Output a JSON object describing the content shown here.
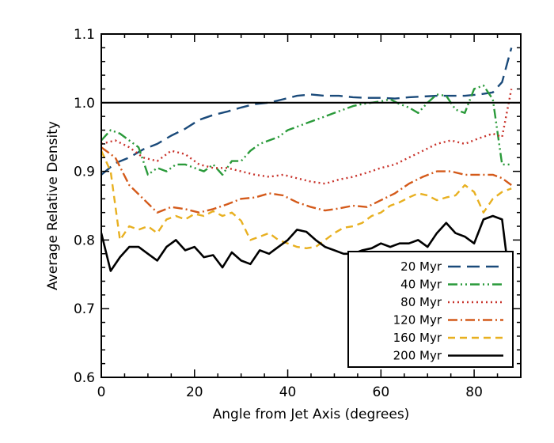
{
  "chart_data": {
    "type": "line",
    "title": "",
    "xlabel": "Angle from Jet Axis (degrees)",
    "ylabel": "Average Relative Density",
    "xlim": [
      0,
      90
    ],
    "ylim": [
      0.6,
      1.1
    ],
    "xticks": [
      0,
      20,
      40,
      60,
      80
    ],
    "xtick_labels": [
      "0",
      "20",
      "40",
      "60",
      "80"
    ],
    "yticks": [
      0.6,
      0.7,
      0.8,
      0.9,
      1.0,
      1.1
    ],
    "ytick_labels": [
      "0.6",
      "0.7",
      "0.8",
      "0.9",
      "1.0",
      "1.1"
    ],
    "grid": false,
    "legend_position": "bottom-right",
    "reference_line": {
      "y": 1.0,
      "color": "#000000"
    },
    "series": [
      {
        "name": "20 Myr",
        "color": "#1a4a7a",
        "dash": "long-dash",
        "x": [
          0,
          3,
          6,
          9,
          12,
          15,
          18,
          21,
          24,
          27,
          30,
          33,
          36,
          39,
          42,
          45,
          48,
          51,
          54,
          57,
          60,
          63,
          66,
          69,
          72,
          75,
          78,
          81,
          84,
          86,
          88
        ],
        "y": [
          0.895,
          0.912,
          0.92,
          0.932,
          0.94,
          0.952,
          0.962,
          0.975,
          0.982,
          0.987,
          0.993,
          0.998,
          1.0,
          1.005,
          1.01,
          1.012,
          1.01,
          1.01,
          1.008,
          1.007,
          1.007,
          1.006,
          1.008,
          1.009,
          1.01,
          1.01,
          1.01,
          1.012,
          1.015,
          1.03,
          1.08
        ]
      },
      {
        "name": "40 Myr",
        "color": "#2a9a3a",
        "dash": "dash-dot-dot",
        "x": [
          0,
          2,
          4,
          6,
          8,
          10,
          12,
          14,
          16,
          18,
          20,
          22,
          24,
          26,
          28,
          30,
          32,
          34,
          36,
          38,
          40,
          42,
          44,
          46,
          48,
          50,
          52,
          54,
          56,
          58,
          60,
          62,
          64,
          66,
          68,
          70,
          72,
          74,
          76,
          78,
          80,
          82,
          84,
          86,
          88
        ],
        "y": [
          0.945,
          0.96,
          0.955,
          0.945,
          0.935,
          0.895,
          0.905,
          0.9,
          0.91,
          0.91,
          0.905,
          0.9,
          0.91,
          0.895,
          0.915,
          0.915,
          0.93,
          0.94,
          0.945,
          0.95,
          0.96,
          0.965,
          0.97,
          0.975,
          0.98,
          0.985,
          0.99,
          0.995,
          0.998,
          1.0,
          1.002,
          1.005,
          0.998,
          0.993,
          0.985,
          1.0,
          1.012,
          1.01,
          0.99,
          0.985,
          1.02,
          1.025,
          1.005,
          0.91,
          0.91
        ]
      },
      {
        "name": "80 Myr",
        "color": "#c8322a",
        "dash": "dotted",
        "x": [
          0,
          3,
          6,
          9,
          12,
          15,
          18,
          21,
          24,
          27,
          30,
          33,
          36,
          39,
          42,
          45,
          48,
          51,
          54,
          57,
          60,
          63,
          66,
          69,
          72,
          75,
          78,
          81,
          84,
          86,
          88
        ],
        "y": [
          0.94,
          0.945,
          0.935,
          0.92,
          0.915,
          0.93,
          0.925,
          0.91,
          0.905,
          0.905,
          0.9,
          0.895,
          0.892,
          0.895,
          0.89,
          0.885,
          0.882,
          0.888,
          0.892,
          0.898,
          0.905,
          0.91,
          0.92,
          0.93,
          0.94,
          0.945,
          0.94,
          0.948,
          0.955,
          0.95,
          1.02
        ]
      },
      {
        "name": "120 Myr",
        "color": "#d45a1a",
        "dash": "dash-dot",
        "x": [
          0,
          3,
          6,
          9,
          12,
          15,
          18,
          21,
          24,
          27,
          30,
          33,
          36,
          39,
          42,
          45,
          48,
          51,
          54,
          57,
          60,
          63,
          66,
          69,
          72,
          75,
          78,
          81,
          84,
          86,
          88
        ],
        "y": [
          0.935,
          0.92,
          0.88,
          0.86,
          0.84,
          0.848,
          0.845,
          0.84,
          0.845,
          0.852,
          0.86,
          0.862,
          0.868,
          0.865,
          0.855,
          0.848,
          0.843,
          0.846,
          0.85,
          0.848,
          0.858,
          0.868,
          0.882,
          0.892,
          0.9,
          0.9,
          0.895,
          0.895,
          0.895,
          0.89,
          0.88
        ]
      },
      {
        "name": "160 Myr",
        "color": "#e8b020",
        "dash": "short-dash",
        "x": [
          0,
          2,
          4,
          6,
          8,
          10,
          12,
          14,
          16,
          18,
          20,
          22,
          24,
          26,
          28,
          30,
          32,
          34,
          36,
          38,
          40,
          42,
          44,
          46,
          48,
          50,
          52,
          54,
          56,
          58,
          60,
          62,
          64,
          66,
          68,
          70,
          72,
          74,
          76,
          78,
          80,
          82,
          84,
          86,
          88
        ],
        "y": [
          0.93,
          0.9,
          0.8,
          0.82,
          0.815,
          0.82,
          0.81,
          0.83,
          0.835,
          0.83,
          0.838,
          0.835,
          0.842,
          0.835,
          0.84,
          0.828,
          0.8,
          0.805,
          0.81,
          0.8,
          0.795,
          0.79,
          0.788,
          0.79,
          0.8,
          0.81,
          0.818,
          0.82,
          0.825,
          0.835,
          0.84,
          0.85,
          0.855,
          0.862,
          0.868,
          0.865,
          0.858,
          0.862,
          0.865,
          0.88,
          0.87,
          0.84,
          0.86,
          0.87,
          0.875
        ]
      },
      {
        "name": "200 Myr",
        "color": "#000000",
        "dash": "solid",
        "x": [
          0,
          2,
          4,
          6,
          8,
          10,
          12,
          14,
          16,
          18,
          20,
          22,
          24,
          26,
          28,
          30,
          32,
          34,
          36,
          38,
          40,
          42,
          44,
          46,
          48,
          50,
          52,
          54,
          56,
          58,
          60,
          62,
          64,
          66,
          68,
          70,
          72,
          74,
          76,
          78,
          80,
          82,
          84,
          86,
          88
        ],
        "y": [
          0.81,
          0.755,
          0.775,
          0.79,
          0.79,
          0.78,
          0.77,
          0.79,
          0.8,
          0.785,
          0.79,
          0.775,
          0.778,
          0.76,
          0.782,
          0.77,
          0.765,
          0.785,
          0.78,
          0.79,
          0.8,
          0.815,
          0.812,
          0.8,
          0.79,
          0.785,
          0.78,
          0.78,
          0.785,
          0.788,
          0.795,
          0.79,
          0.795,
          0.795,
          0.8,
          0.79,
          0.81,
          0.825,
          0.81,
          0.805,
          0.795,
          0.83,
          0.835,
          0.83,
          0.72
        ]
      }
    ]
  }
}
